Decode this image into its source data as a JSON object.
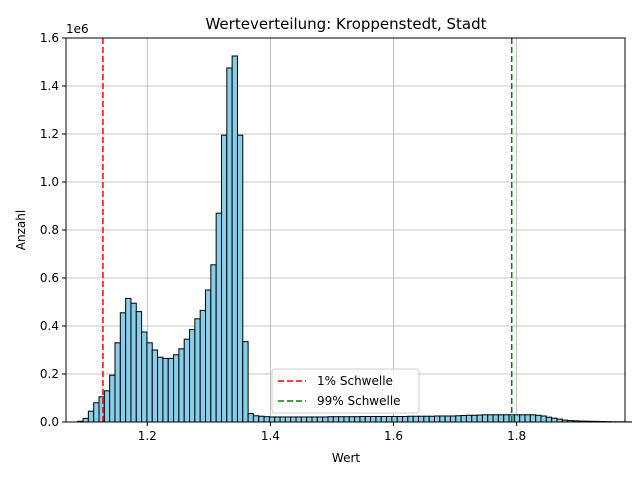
{
  "chart_data": {
    "type": "bar",
    "title": "Werteverteilung: Kroppenstedt, Stadt",
    "xlabel": "Wert",
    "ylabel": "Anzahl",
    "y_offset_label": "1e6",
    "xlim": [
      1.068,
      1.976
    ],
    "ylim": [
      0,
      1600000
    ],
    "grid": true,
    "bar_color": "#87ceeb",
    "bar_edge_color": "#000000",
    "x_ticks": [
      {
        "value": 1.2,
        "label": "1.2"
      },
      {
        "value": 1.4,
        "label": "1.4"
      },
      {
        "value": 1.6,
        "label": "1.6"
      },
      {
        "value": 1.8,
        "label": "1.8"
      }
    ],
    "y_ticks": [
      {
        "value": 0,
        "label": "0.0"
      },
      {
        "value": 200000,
        "label": "0.2"
      },
      {
        "value": 400000,
        "label": "0.4"
      },
      {
        "value": 600000,
        "label": "0.6"
      },
      {
        "value": 800000,
        "label": "0.8"
      },
      {
        "value": 1000000,
        "label": "1.0"
      },
      {
        "value": 1200000,
        "label": "1.2"
      },
      {
        "value": 1400000,
        "label": "1.4"
      },
      {
        "value": 1600000,
        "label": "1.6"
      }
    ],
    "bin_start": 1.087,
    "bin_width": 0.00865,
    "values": [
      3000,
      15000,
      45000,
      80000,
      105000,
      130000,
      195000,
      330000,
      455000,
      515000,
      495000,
      460000,
      375000,
      330000,
      300000,
      270000,
      265000,
      265000,
      280000,
      305000,
      345000,
      385000,
      430000,
      465000,
      550000,
      655000,
      870000,
      1195000,
      1475000,
      1525000,
      1195000,
      335000,
      35000,
      26000,
      24000,
      22000,
      21000,
      21000,
      21000,
      21000,
      21000,
      21000,
      21000,
      21000,
      21000,
      21000,
      21000,
      22000,
      22000,
      22000,
      22000,
      22000,
      22000,
      23000,
      23000,
      23000,
      23000,
      23000,
      23000,
      23000,
      23000,
      23000,
      24000,
      24000,
      24000,
      24000,
      24000,
      25000,
      25000,
      25000,
      25000,
      26000,
      27000,
      28000,
      28000,
      29000,
      30000,
      30000,
      30000,
      30000,
      30000,
      30000,
      30000,
      30000,
      30000,
      30000,
      28000,
      25000,
      20000,
      16000,
      12000,
      8000,
      6000,
      5000,
      4000,
      3500,
      3000,
      2500,
      2000,
      1500,
      1000,
      800,
      600,
      400
    ],
    "thresholds": [
      {
        "name": "1% Schwelle",
        "value": 1.128,
        "color": "#ff0000"
      },
      {
        "name": "99% Schwelle",
        "value": 1.792,
        "color": "#008000"
      }
    ]
  }
}
